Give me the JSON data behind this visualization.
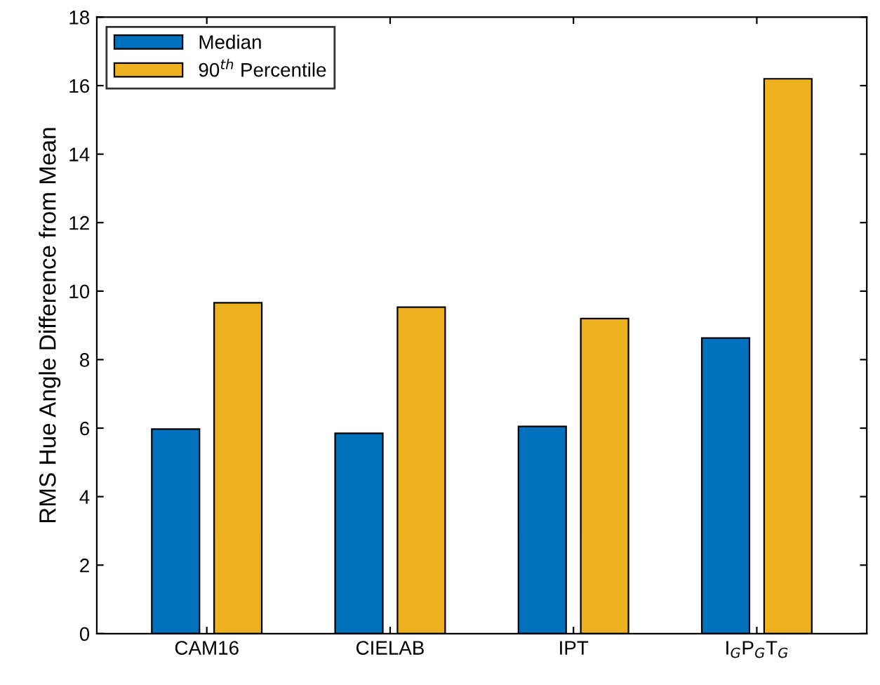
{
  "chart_data": {
    "type": "bar",
    "ylabel": "RMS Hue Angle Difference from Mean",
    "categories": [
      "CAM16",
      "CIELAB",
      "IPT",
      "I$_{G}$P$_{G}$T$_{G}$"
    ],
    "series": [
      {
        "name": "Median",
        "color": "#0072bd",
        "values": [
          5.97,
          5.85,
          6.05,
          8.63
        ]
      },
      {
        "name": "90$^{th}$ Percentile",
        "color": "#edb120",
        "values": [
          9.66,
          9.53,
          9.2,
          16.2
        ]
      }
    ],
    "ylim": [
      0,
      18
    ],
    "yticks": [
      0,
      2,
      4,
      6,
      8,
      10,
      12,
      14,
      16,
      18
    ],
    "grid": false,
    "legend": "top left"
  }
}
